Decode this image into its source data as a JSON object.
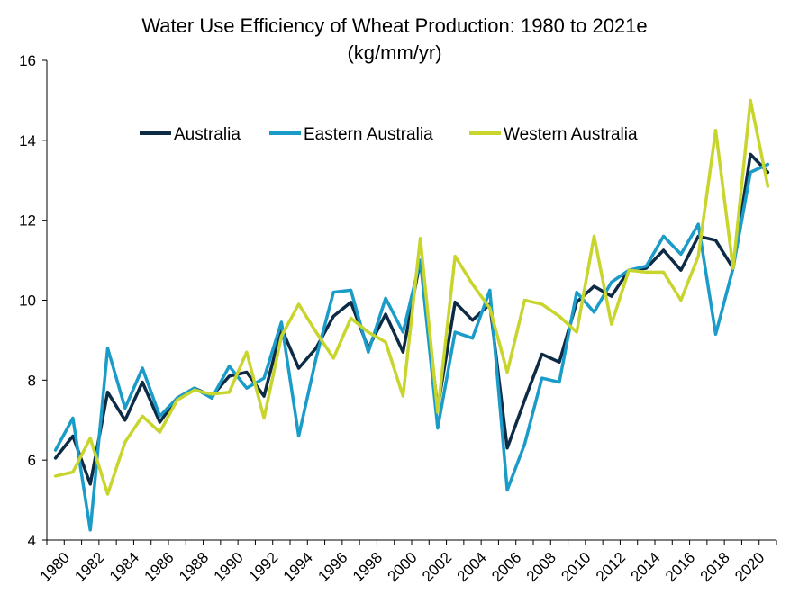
{
  "chart_data": {
    "type": "line",
    "title": "Water Use Efficiency of Wheat Production: 1980 to 2021e",
    "subtitle": "(kg/mm/yr)",
    "xlabel": "",
    "ylabel": "",
    "ylim": [
      4,
      16
    ],
    "yticks": [
      4,
      6,
      8,
      10,
      12,
      14,
      16
    ],
    "x": [
      1980,
      1981,
      1982,
      1983,
      1984,
      1985,
      1986,
      1987,
      1988,
      1989,
      1990,
      1991,
      1992,
      1993,
      1994,
      1995,
      1996,
      1997,
      1998,
      1999,
      2000,
      2001,
      2002,
      2003,
      2004,
      2005,
      2006,
      2007,
      2008,
      2009,
      2010,
      2011,
      2012,
      2013,
      2014,
      2015,
      2016,
      2017,
      2018,
      2019,
      2020,
      2021
    ],
    "xtick_labels": [
      "1980",
      "1982",
      "1984",
      "1986",
      "1988",
      "1990",
      "1992",
      "1994",
      "1996",
      "1998",
      "2000",
      "2002",
      "2004",
      "2006",
      "2008",
      "2010",
      "2012",
      "2014",
      "2016",
      "2018",
      "2020"
    ],
    "grid": false,
    "legend_position": "top-center",
    "series": [
      {
        "name": "Australia",
        "color": "#0d2b45",
        "values": [
          6.05,
          6.6,
          5.4,
          7.7,
          7.0,
          7.95,
          6.95,
          7.55,
          7.8,
          7.6,
          8.1,
          8.2,
          7.6,
          9.3,
          8.3,
          8.8,
          9.6,
          9.95,
          8.8,
          9.65,
          8.7,
          11.0,
          7.3,
          9.95,
          9.5,
          9.9,
          6.3,
          7.5,
          8.65,
          8.45,
          9.95,
          10.35,
          10.1,
          10.75,
          10.8,
          11.25,
          10.75,
          11.6,
          11.5,
          10.8,
          13.65,
          13.2
        ]
      },
      {
        "name": "Eastern Australia",
        "color": "#1b9cc8",
        "values": [
          6.25,
          7.05,
          4.25,
          8.8,
          7.3,
          8.3,
          7.1,
          7.55,
          7.8,
          7.55,
          8.35,
          7.8,
          8.05,
          9.45,
          6.6,
          8.55,
          10.2,
          10.25,
          8.7,
          10.05,
          9.2,
          11.0,
          6.8,
          9.2,
          9.05,
          10.25,
          5.25,
          6.4,
          8.05,
          7.95,
          10.2,
          9.7,
          10.45,
          10.75,
          10.85,
          11.6,
          11.15,
          11.9,
          9.15,
          10.8,
          13.2,
          13.4
        ]
      },
      {
        "name": "Western Australia",
        "color": "#c8d52c",
        "values": [
          5.6,
          5.7,
          6.55,
          5.15,
          6.45,
          7.1,
          6.7,
          7.5,
          7.75,
          7.65,
          7.7,
          8.7,
          7.05,
          9.1,
          9.9,
          9.2,
          8.55,
          9.55,
          9.2,
          8.95,
          7.6,
          11.55,
          7.2,
          11.1,
          10.4,
          9.8,
          8.2,
          10.0,
          9.9,
          9.6,
          9.2,
          11.6,
          9.4,
          10.75,
          10.7,
          10.7,
          10.0,
          11.1,
          14.25,
          10.8,
          15.0,
          12.85
        ]
      }
    ]
  }
}
